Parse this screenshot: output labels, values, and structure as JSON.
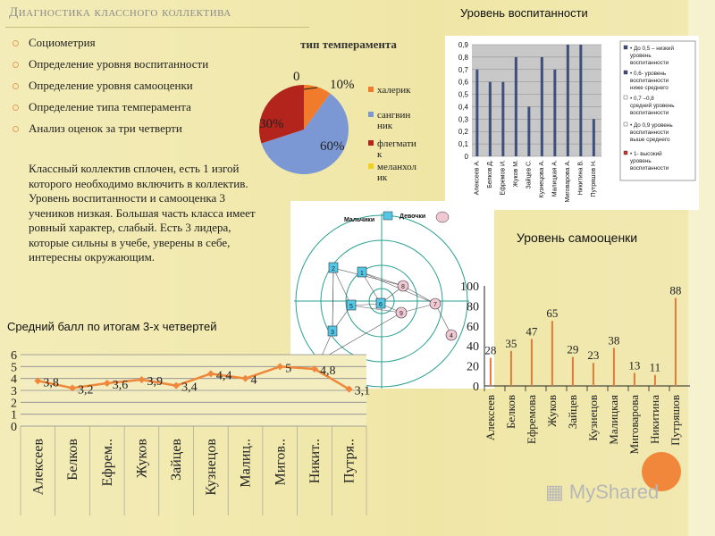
{
  "title": "Диагностика классного коллектива",
  "bullets": [
    "Социометрия",
    "Определение уровня воспитанности",
    "Определение уровня самооценки",
    "Определение типа темперамента",
    "Анализ оценок за три четверти"
  ],
  "paragraph": "Классный коллектив сплочен, есть 1 изгой которого необходимо включить в коллектив. Уровень воспитанности и самооценка 3 учеников низкая. Большая часть класса имеет ровный характер, слабый. Есть 3 лидера, которые сильны в учебе, уверены в себе, интересны окружающим.",
  "headers": {
    "upbringing": "Уровень воспитанности",
    "selfesteem": "Уровень самооценки",
    "avg_score": "Средний балл по итогам 3-х четвертей"
  },
  "logo": "MyShared",
  "colors": {
    "orange": "#f0873a",
    "blue_series": "#4a5b8c",
    "pie_blue": "#7b98d4",
    "pie_red": "#b2241c",
    "pie_orange": "#f07b2a"
  },
  "chart_data": [
    {
      "id": "temperament",
      "type": "pie",
      "title": "тип темперамента",
      "slices": [
        {
          "name": "халерик",
          "value": 10,
          "label": "10%",
          "color": "#f07b2a"
        },
        {
          "name": "сангвинник",
          "value": 60,
          "label": "60%",
          "color": "#7b98d4"
        },
        {
          "name": "флегматик",
          "value": 30,
          "label": "30%",
          "color": "#b2241c"
        },
        {
          "name": "меланхолик",
          "value": 0,
          "label": "0",
          "color": "#f0d020"
        }
      ],
      "legend": [
        "халерик",
        "сангвин ник",
        "флегмати к",
        "меланхол ик"
      ]
    },
    {
      "id": "upbringing",
      "type": "bar",
      "title": "Уровень воспитанности",
      "categories": [
        "Алексеев А.",
        "Белков Д.",
        "Ефремов И.",
        "Жуков М.",
        "Зайцев С.",
        "Кузнецова А.",
        "Малицкая А.",
        "Миговарова А.",
        "Никитина В.",
        "Путряшов Н."
      ],
      "values": [
        0.7,
        0.6,
        0.6,
        0.8,
        0.4,
        0.8,
        0.7,
        0.9,
        0.9,
        0.3
      ],
      "ylim": [
        0,
        0.9
      ],
      "yticks": [
        "0",
        "0,1",
        "0,2",
        "0,3",
        "0,4",
        "0,5",
        "0,6",
        "0,7",
        "0,8",
        "0,9"
      ],
      "legend": [
        "• До 0,5 – низкий уровень воспитанности",
        "• 0,6- уровень воспитанности ниже среднего",
        "• 0,7 –0,8 средний уровень воспитанности",
        "• До 0,9 уровень воспитанности выше среднего",
        "• 1- высокий уровень воспитанности"
      ]
    },
    {
      "id": "sociometry",
      "type": "diagram",
      "legend": [
        "Мальчики",
        "Девочки"
      ],
      "boys": [
        "2",
        "1",
        "5",
        "6",
        "3",
        "10"
      ],
      "girls": [
        "8",
        "9",
        "7",
        "4"
      ]
    },
    {
      "id": "selfesteem",
      "type": "bar",
      "title": "Уровень самооценки",
      "categories": [
        "Алексеев",
        "Белков",
        "Ефремова",
        "Жуков",
        "Зайцев",
        "Кузнецов",
        "Малицкая",
        "Миговарова",
        "Никитина",
        "Путряшов"
      ],
      "values": [
        28,
        35,
        47,
        65,
        29,
        23,
        38,
        13,
        11,
        88
      ],
      "ylim": [
        0,
        100
      ],
      "yticks": [
        "0",
        "20",
        "40",
        "60",
        "80",
        "100"
      ]
    },
    {
      "id": "avg_score",
      "type": "line",
      "title": "Средний балл по итогам 3-х четвертей",
      "categories": [
        "Алексеев",
        "Белков",
        "Ефрем..",
        "Жуков",
        "Зайцев",
        "Кузнецов",
        "Малиц..",
        "Мигов..",
        "Никит..",
        "Путря.."
      ],
      "values": [
        3.8,
        3.2,
        3.6,
        3.9,
        3.4,
        4.4,
        4,
        5,
        4.8,
        3.1
      ],
      "labels": [
        "3,8",
        "3,2",
        "3,6",
        "3,9",
        "3,4",
        "4,4",
        "4",
        "5",
        "4,8",
        "3,1"
      ],
      "ylim": [
        0,
        6
      ],
      "yticks": [
        "0",
        "1",
        "2",
        "3",
        "4",
        "5",
        "6"
      ]
    }
  ]
}
